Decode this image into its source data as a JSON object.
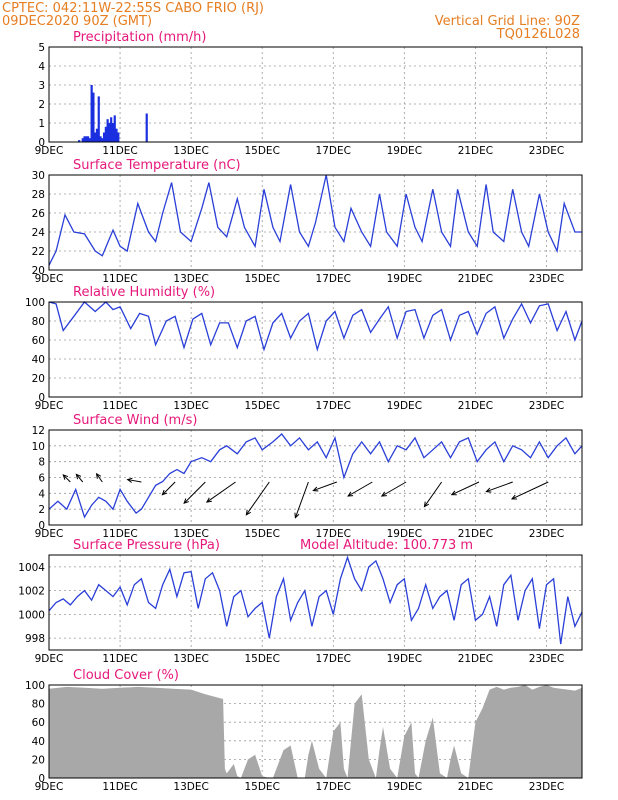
{
  "header": {
    "left_line1": "CPTEC:   042:11W-22:55S   CABO FRIO (RJ)",
    "left_line2": "09DEC2020 90Z (GMT)",
    "right_line1": "Vertical Grid Line: 90Z",
    "right_line2": "TQ0126L028"
  },
  "colors": {
    "header": "#e67e22",
    "title": "#e6187a",
    "series": "#2a3fd8",
    "cloud": "#a8a8a8"
  },
  "x_ticks": [
    "9DEC",
    "11DEC",
    "13DEC",
    "15DEC",
    "17DEC",
    "19DEC",
    "21DEC",
    "23DEC"
  ],
  "chart_data": [
    {
      "type": "bar",
      "title": "Precipitation (mm/h)",
      "ylim": [
        0,
        5
      ],
      "yticks": [
        0,
        1,
        2,
        3,
        4,
        5
      ],
      "x_range": [
        0,
        15
      ],
      "x": [
        0.85,
        0.95,
        1.0,
        1.05,
        1.1,
        1.15,
        1.2,
        1.25,
        1.3,
        1.35,
        1.4,
        1.45,
        1.5,
        1.55,
        1.6,
        1.65,
        1.7,
        1.75,
        1.8,
        1.85,
        1.9,
        1.95,
        2.75
      ],
      "values": [
        0.1,
        0.2,
        0.3,
        0.3,
        0.3,
        0.2,
        3.0,
        2.6,
        0.5,
        0.7,
        2.4,
        0.3,
        0.2,
        0.5,
        0.8,
        1.2,
        1.0,
        1.3,
        1.0,
        1.4,
        0.7,
        0.5,
        1.5
      ]
    },
    {
      "type": "line",
      "title": "Surface Temperature (nC)",
      "ylim": [
        20,
        30
      ],
      "yticks": [
        20,
        22,
        24,
        26,
        28,
        30
      ],
      "x_range": [
        0,
        15
      ],
      "x": [
        0,
        0.2,
        0.45,
        0.7,
        1.0,
        1.3,
        1.5,
        1.8,
        2.0,
        2.2,
        2.5,
        2.8,
        3.0,
        3.2,
        3.45,
        3.7,
        4.0,
        4.3,
        4.5,
        4.75,
        5.0,
        5.3,
        5.5,
        5.8,
        6.05,
        6.3,
        6.5,
        6.8,
        7.05,
        7.3,
        7.5,
        7.8,
        8.05,
        8.3,
        8.5,
        8.8,
        9.05,
        9.3,
        9.5,
        9.8,
        10.05,
        10.3,
        10.5,
        10.8,
        11.05,
        11.3,
        11.5,
        11.8,
        12.05,
        12.3,
        12.5,
        12.8,
        13.05,
        13.3,
        13.5,
        13.8,
        14.05,
        14.3,
        14.5,
        14.8,
        15.0
      ],
      "values": [
        20.5,
        22.0,
        25.8,
        24.0,
        23.8,
        22.0,
        21.5,
        24.2,
        22.5,
        22.0,
        27.0,
        24.0,
        23.0,
        26.0,
        29.2,
        24.0,
        23.0,
        26.5,
        29.2,
        24.5,
        23.5,
        27.5,
        24.5,
        22.5,
        28.5,
        24.5,
        23.0,
        29.0,
        24.0,
        22.5,
        25.0,
        30.0,
        24.5,
        23.0,
        26.5,
        24.0,
        22.5,
        28.0,
        24.0,
        22.5,
        28.0,
        24.5,
        23.0,
        28.5,
        24.0,
        22.5,
        28.5,
        24.0,
        22.5,
        29.0,
        24.0,
        23.0,
        28.5,
        24.0,
        22.5,
        28.0,
        24.0,
        22.0,
        27.0,
        24.0,
        24.0
      ]
    },
    {
      "type": "line",
      "title": "Relative Humidity (%)",
      "ylim": [
        0,
        100
      ],
      "yticks": [
        0,
        20,
        40,
        60,
        80,
        100
      ],
      "x_range": [
        0,
        15
      ],
      "x": [
        0,
        0.2,
        0.4,
        0.7,
        1.0,
        1.3,
        1.6,
        1.8,
        2.0,
        2.3,
        2.55,
        2.8,
        3.0,
        3.3,
        3.55,
        3.8,
        4.05,
        4.3,
        4.55,
        4.8,
        5.05,
        5.3,
        5.55,
        5.8,
        6.05,
        6.3,
        6.55,
        6.8,
        7.05,
        7.3,
        7.55,
        7.8,
        8.05,
        8.3,
        8.55,
        8.8,
        9.05,
        9.3,
        9.55,
        9.8,
        10.05,
        10.3,
        10.55,
        10.8,
        11.05,
        11.3,
        11.55,
        11.8,
        12.05,
        12.3,
        12.55,
        12.8,
        13.05,
        13.3,
        13.55,
        13.8,
        14.05,
        14.3,
        14.55,
        14.8,
        15.0
      ],
      "values": [
        100,
        98,
        70,
        85,
        100,
        90,
        100,
        92,
        95,
        72,
        88,
        85,
        55,
        80,
        85,
        52,
        82,
        88,
        55,
        78,
        78,
        52,
        80,
        85,
        50,
        78,
        88,
        62,
        80,
        88,
        50,
        80,
        90,
        62,
        86,
        92,
        68,
        82,
        95,
        62,
        90,
        92,
        62,
        86,
        92,
        60,
        86,
        90,
        66,
        88,
        95,
        62,
        82,
        98,
        78,
        96,
        98,
        70,
        90,
        60,
        80
      ]
    },
    {
      "type": "line",
      "title": "Surface Wind (m/s)",
      "ylim": [
        0,
        12
      ],
      "yticks": [
        0,
        2,
        4,
        6,
        8,
        10,
        12
      ],
      "x_range": [
        0,
        15
      ],
      "x": [
        0,
        0.25,
        0.5,
        0.75,
        1.0,
        1.2,
        1.4,
        1.6,
        1.8,
        2.0,
        2.2,
        2.45,
        2.6,
        2.8,
        3.0,
        3.2,
        3.4,
        3.6,
        3.8,
        4.0,
        4.3,
        4.55,
        4.8,
        5.0,
        5.3,
        5.55,
        5.8,
        6.0,
        6.3,
        6.55,
        6.8,
        7.05,
        7.3,
        7.55,
        7.8,
        8.05,
        8.3,
        8.55,
        8.8,
        9.05,
        9.3,
        9.55,
        9.8,
        10.05,
        10.3,
        10.55,
        10.8,
        11.05,
        11.3,
        11.55,
        11.8,
        12.05,
        12.3,
        12.55,
        12.8,
        13.05,
        13.3,
        13.55,
        13.8,
        14.05,
        14.3,
        14.55,
        14.8,
        15.0
      ],
      "values": [
        2.0,
        3.0,
        2.0,
        4.5,
        1.0,
        2.5,
        3.5,
        3.0,
        2.0,
        4.5,
        3.0,
        1.5,
        2.0,
        3.5,
        5.0,
        5.5,
        6.5,
        7.0,
        6.5,
        8.0,
        8.5,
        8.0,
        9.5,
        10.0,
        9.0,
        10.5,
        11.0,
        9.5,
        10.5,
        11.5,
        10.0,
        11.0,
        9.5,
        10.5,
        8.5,
        11.0,
        6.0,
        9.0,
        10.5,
        9.0,
        10.5,
        8.0,
        10.0,
        9.5,
        11.0,
        8.5,
        9.5,
        10.5,
        8.5,
        10.5,
        11.0,
        8.0,
        9.5,
        10.5,
        8.0,
        10.0,
        9.5,
        8.5,
        10.5,
        8.5,
        10.0,
        11.0,
        9.0,
        10.0
      ],
      "vectors": [
        {
          "x": 0.6,
          "angle": 135,
          "len": 10
        },
        {
          "x": 0.95,
          "angle": 130,
          "len": 10
        },
        {
          "x": 1.5,
          "angle": 125,
          "len": 10
        },
        {
          "x": 2.6,
          "angle": 170,
          "len": 14
        },
        {
          "x": 3.55,
          "angle": 225,
          "len": 18
        },
        {
          "x": 4.4,
          "angle": 225,
          "len": 30
        },
        {
          "x": 5.25,
          "angle": 215,
          "len": 35
        },
        {
          "x": 6.2,
          "angle": 235,
          "len": 40
        },
        {
          "x": 7.3,
          "angle": 250,
          "len": 38
        },
        {
          "x": 8.1,
          "angle": 200,
          "len": 25
        },
        {
          "x": 9.1,
          "angle": 210,
          "len": 28
        },
        {
          "x": 10.05,
          "angle": 210,
          "len": 28
        },
        {
          "x": 11.05,
          "angle": 235,
          "len": 30
        },
        {
          "x": 12.1,
          "angle": 205,
          "len": 30
        },
        {
          "x": 13.05,
          "angle": 200,
          "len": 28
        },
        {
          "x": 14.05,
          "angle": 205,
          "len": 40
        }
      ]
    },
    {
      "type": "line",
      "title": "Surface Pressure (hPa)",
      "annotation": "Model Altitude: 100.773  m",
      "ylim": [
        997,
        1005
      ],
      "yticks": [
        998,
        1000,
        1002,
        1004
      ],
      "x_range": [
        0,
        15
      ],
      "x": [
        0,
        0.2,
        0.4,
        0.6,
        0.8,
        1.0,
        1.2,
        1.4,
        1.6,
        1.8,
        2.0,
        2.2,
        2.4,
        2.6,
        2.8,
        3.0,
        3.2,
        3.4,
        3.6,
        3.8,
        4.0,
        4.2,
        4.4,
        4.6,
        4.8,
        5.0,
        5.2,
        5.4,
        5.6,
        5.8,
        6.0,
        6.2,
        6.4,
        6.6,
        6.8,
        7.0,
        7.2,
        7.4,
        7.6,
        7.8,
        8.0,
        8.2,
        8.4,
        8.6,
        8.8,
        9.0,
        9.2,
        9.4,
        9.6,
        9.8,
        10.0,
        10.2,
        10.4,
        10.6,
        10.8,
        11.0,
        11.2,
        11.4,
        11.6,
        11.8,
        12.0,
        12.2,
        12.4,
        12.6,
        12.8,
        13.0,
        13.2,
        13.4,
        13.6,
        13.8,
        14.0,
        14.2,
        14.4,
        14.6,
        14.8,
        15.0
      ],
      "values": [
        1000.3,
        1001.0,
        1001.3,
        1000.8,
        1001.5,
        1002.0,
        1001.2,
        1002.5,
        1002.0,
        1001.5,
        1002.3,
        1000.8,
        1002.5,
        1003.0,
        1001.0,
        1000.5,
        1002.5,
        1003.8,
        1001.5,
        1003.5,
        1003.6,
        1000.5,
        1003.0,
        1003.5,
        1002.0,
        999.0,
        1001.5,
        1002.0,
        999.8,
        1000.5,
        1001.0,
        998.0,
        1001.5,
        1003.0,
        999.5,
        1001.0,
        1002.0,
        999.0,
        1001.5,
        1002.0,
        1000.0,
        1003.0,
        1004.8,
        1003.0,
        1002.0,
        1004.0,
        1004.5,
        1003.0,
        1001.0,
        1002.5,
        1003.0,
        999.5,
        1000.5,
        1002.5,
        1000.5,
        1001.5,
        1002.0,
        999.5,
        1002.5,
        1003.0,
        999.5,
        1000.0,
        1001.5,
        999.0,
        1002.5,
        1003.3,
        999.5,
        1002.0,
        1003.0,
        998.8,
        1002.5,
        1003.0,
        997.5,
        1001.5,
        999.0,
        1000.2
      ]
    },
    {
      "type": "area",
      "title": "Cloud Cover (%)",
      "ylim": [
        0,
        100
      ],
      "yticks": [
        0,
        20,
        40,
        60,
        80,
        100
      ],
      "x_range": [
        0,
        15
      ],
      "x": [
        0,
        0.5,
        1.0,
        1.5,
        2.0,
        2.5,
        3.0,
        3.5,
        4.0,
        4.4,
        4.9,
        4.95,
        5.0,
        5.2,
        5.3,
        5.4,
        5.6,
        5.8,
        6.0,
        6.2,
        6.3,
        6.4,
        6.6,
        6.8,
        7.0,
        7.2,
        7.3,
        7.4,
        7.6,
        7.8,
        8.0,
        8.2,
        8.3,
        8.4,
        8.6,
        8.8,
        9.0,
        9.2,
        9.3,
        9.4,
        9.6,
        9.8,
        10.0,
        10.2,
        10.3,
        10.4,
        10.6,
        10.8,
        11.0,
        11.2,
        11.3,
        11.4,
        11.6,
        11.8,
        12.0,
        12.2,
        12.4,
        12.6,
        12.8,
        13.0,
        13.2,
        13.4,
        13.6,
        13.8,
        14.0,
        14.2,
        14.4,
        14.6,
        14.8,
        15.0
      ],
      "values": [
        96,
        98,
        97,
        96,
        97,
        98,
        97,
        96,
        95,
        90,
        85,
        10,
        5,
        15,
        2,
        0,
        20,
        25,
        2,
        0,
        0,
        10,
        30,
        35,
        0,
        0,
        25,
        40,
        10,
        0,
        50,
        60,
        10,
        0,
        80,
        90,
        20,
        0,
        30,
        55,
        10,
        0,
        45,
        60,
        5,
        0,
        40,
        65,
        5,
        0,
        20,
        35,
        5,
        0,
        60,
        75,
        95,
        98,
        95,
        97,
        98,
        100,
        95,
        98,
        100,
        97,
        96,
        95,
        94,
        97
      ]
    }
  ]
}
